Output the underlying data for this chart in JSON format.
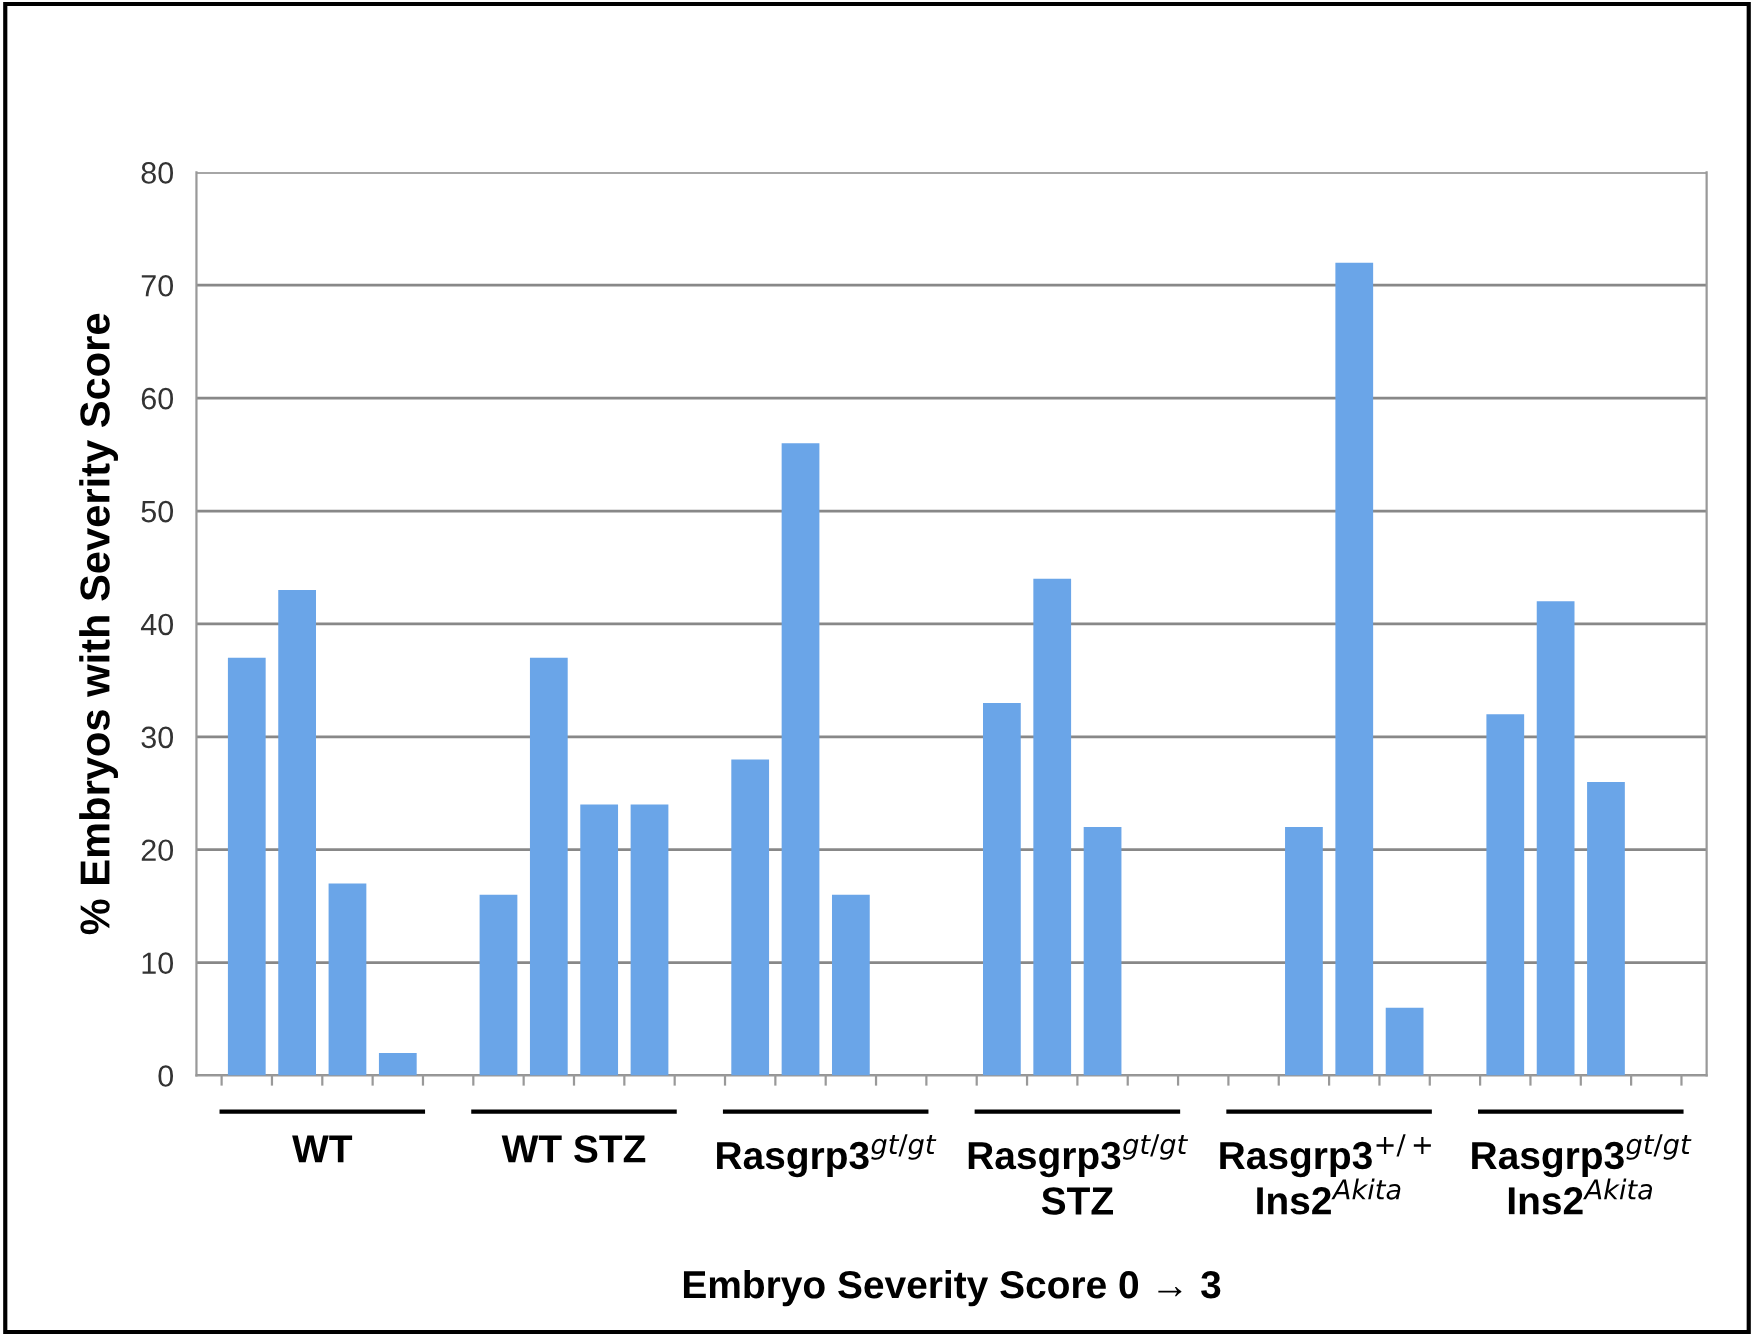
{
  "chart_data": {
    "type": "bar",
    "categories": [
      "WT",
      "WT STZ",
      "Rasgrp3$^{gt/gt}$",
      "Rasgrp3$^{gt/gt}$\nSTZ",
      "Rasgrp3$^{+/+}$\nIns2$^{Akita}$",
      "Rasgrp3$^{gt/gt}$\nIns2$^{Akita}$"
    ],
    "series": [
      {
        "color": "#6aa5e8",
        "values": [
          37,
          16,
          28,
          33,
          null,
          32
        ]
      },
      {
        "color": "#6aa5e8",
        "values": [
          43,
          37,
          56,
          44,
          22,
          42
        ]
      },
      {
        "color": "#6aa5e8",
        "values": [
          17,
          24,
          16,
          22,
          72,
          26
        ]
      },
      {
        "color": "#6aa5e8",
        "values": [
          2,
          24,
          null,
          null,
          6,
          null
        ]
      }
    ],
    "ylabel": "% Embryos with Severity Score",
    "xlabel": "Embryo Severity Score 0 → 3",
    "ylim": [
      0,
      80
    ],
    "yticks": [
      0,
      10,
      20,
      30,
      40,
      50,
      60,
      70,
      80
    ],
    "grid": "y",
    "legend": false
  }
}
